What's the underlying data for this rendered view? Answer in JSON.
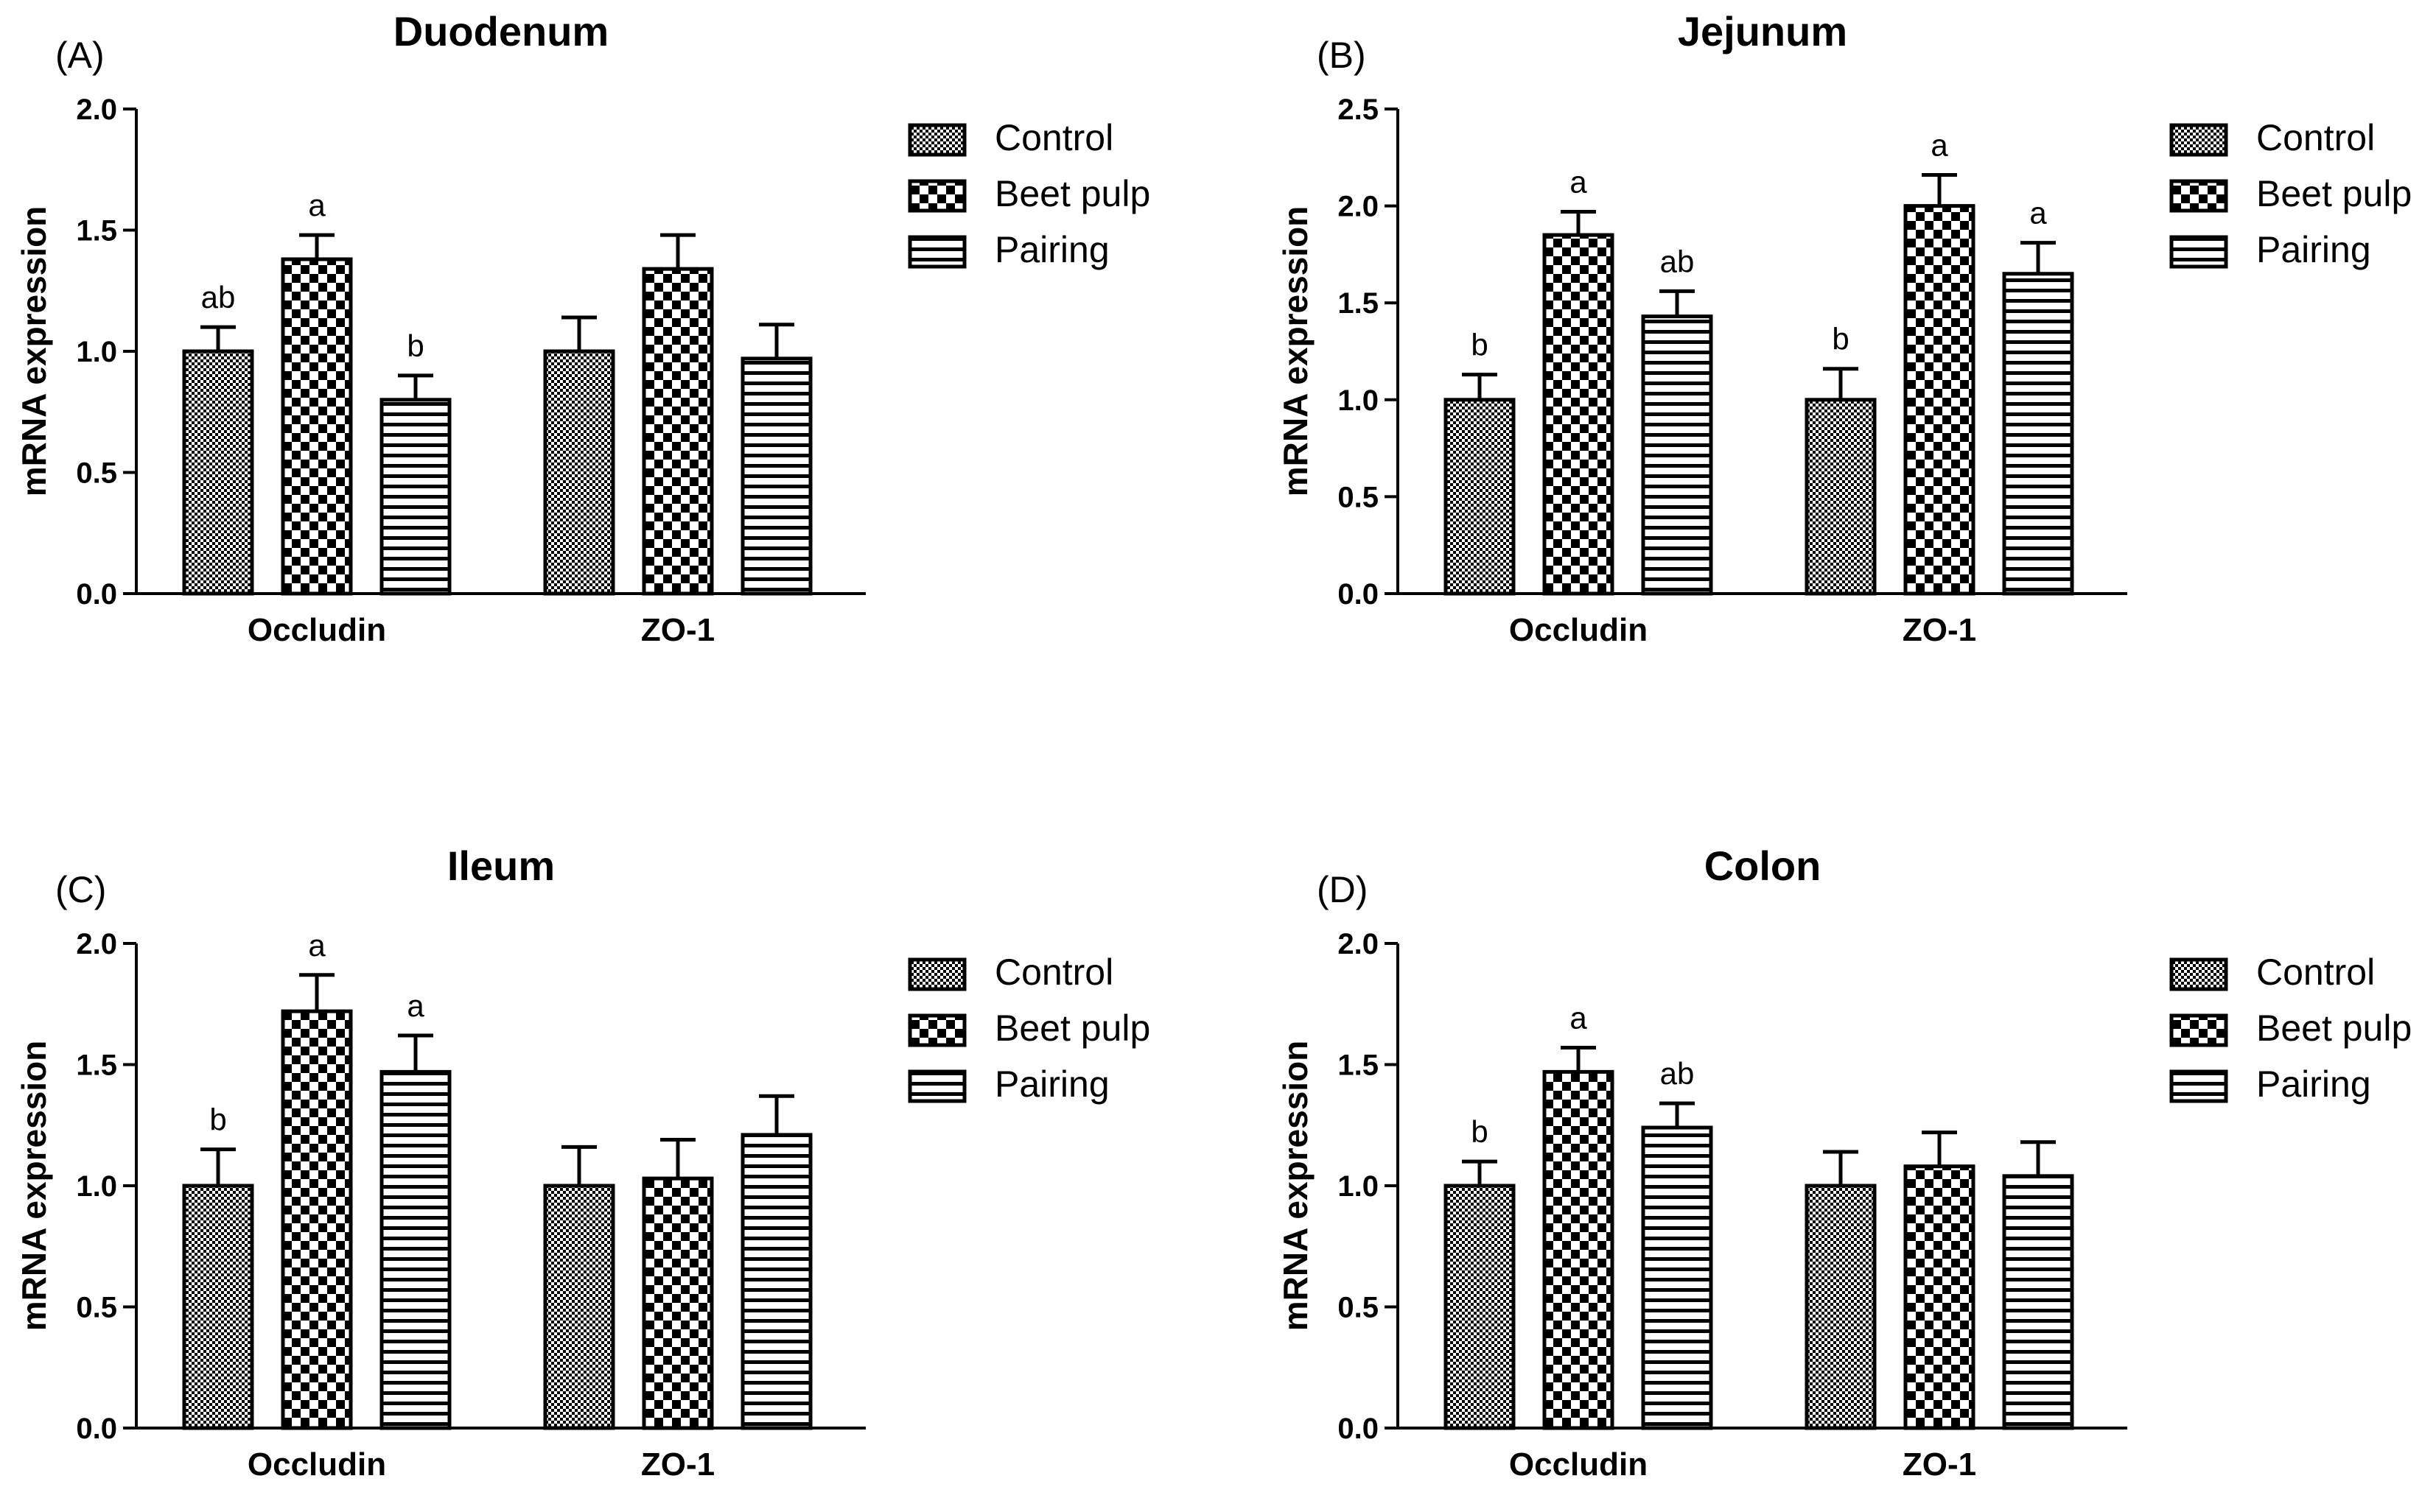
{
  "colors": {
    "ink": "#000000",
    "background": "#ffffff"
  },
  "legend": {
    "entries": [
      {
        "label": "Control",
        "pattern": "fine-check"
      },
      {
        "label": "Beet pulp",
        "pattern": "coarse-check"
      },
      {
        "label": "Pairing",
        "pattern": "horizontal-stripes"
      }
    ]
  },
  "chart_data": [
    {
      "type": "bar",
      "panel_label": "(A)",
      "title": "Duodenum",
      "ylabel": "mRNA expression",
      "xlabel": "",
      "ylim": [
        0,
        2.0
      ],
      "yticks": [
        "0.0",
        "0.5",
        "1.0",
        "1.5",
        "2.0"
      ],
      "categories": [
        "Occludin",
        "ZO-1"
      ],
      "series": [
        {
          "name": "Control",
          "values": [
            1.0,
            1.0
          ],
          "errors": [
            0.1,
            0.14
          ],
          "labels": [
            "ab",
            ""
          ]
        },
        {
          "name": "Beet pulp",
          "values": [
            1.38,
            1.34
          ],
          "errors": [
            0.1,
            0.14
          ],
          "labels": [
            "a",
            ""
          ]
        },
        {
          "name": "Pairing",
          "values": [
            0.8,
            0.97
          ],
          "errors": [
            0.1,
            0.14
          ],
          "labels": [
            "b",
            ""
          ]
        }
      ]
    },
    {
      "type": "bar",
      "panel_label": "(B)",
      "title": "Jejunum",
      "ylabel": "mRNA expression",
      "xlabel": "",
      "ylim": [
        0,
        2.5
      ],
      "yticks": [
        "0.0",
        "0.5",
        "1.0",
        "1.5",
        "2.0",
        "2.5"
      ],
      "categories": [
        "Occludin",
        "ZO-1"
      ],
      "series": [
        {
          "name": "Control",
          "values": [
            1.0,
            1.0
          ],
          "errors": [
            0.13,
            0.16
          ],
          "labels": [
            "b",
            "b"
          ]
        },
        {
          "name": "Beet pulp",
          "values": [
            1.85,
            2.0
          ],
          "errors": [
            0.12,
            0.16
          ],
          "labels": [
            "a",
            "a"
          ]
        },
        {
          "name": "Pairing",
          "values": [
            1.43,
            1.65
          ],
          "errors": [
            0.13,
            0.16
          ],
          "labels": [
            "ab",
            "a"
          ]
        }
      ]
    },
    {
      "type": "bar",
      "panel_label": "(C)",
      "title": "Ileum",
      "ylabel": "mRNA expression",
      "xlabel": "",
      "ylim": [
        0,
        2.0
      ],
      "yticks": [
        "0.0",
        "0.5",
        "1.0",
        "1.5",
        "2.0"
      ],
      "categories": [
        "Occludin",
        "ZO-1"
      ],
      "series": [
        {
          "name": "Control",
          "values": [
            1.0,
            1.0
          ],
          "errors": [
            0.15,
            0.16
          ],
          "labels": [
            "b",
            ""
          ]
        },
        {
          "name": "Beet pulp",
          "values": [
            1.72,
            1.03
          ],
          "errors": [
            0.15,
            0.16
          ],
          "labels": [
            "a",
            ""
          ]
        },
        {
          "name": "Pairing",
          "values": [
            1.47,
            1.21
          ],
          "errors": [
            0.15,
            0.16
          ],
          "labels": [
            "a",
            ""
          ]
        }
      ]
    },
    {
      "type": "bar",
      "panel_label": "(D)",
      "title": "Colon",
      "ylabel": "mRNA expression",
      "xlabel": "",
      "ylim": [
        0,
        2.0
      ],
      "yticks": [
        "0.0",
        "0.5",
        "1.0",
        "1.5",
        "2.0"
      ],
      "categories": [
        "Occludin",
        "ZO-1"
      ],
      "series": [
        {
          "name": "Control",
          "values": [
            1.0,
            1.0
          ],
          "errors": [
            0.1,
            0.14
          ],
          "labels": [
            "b",
            ""
          ]
        },
        {
          "name": "Beet pulp",
          "values": [
            1.47,
            1.08
          ],
          "errors": [
            0.1,
            0.14
          ],
          "labels": [
            "a",
            ""
          ]
        },
        {
          "name": "Pairing",
          "values": [
            1.24,
            1.04
          ],
          "errors": [
            0.1,
            0.14
          ],
          "labels": [
            "ab",
            ""
          ]
        }
      ]
    }
  ]
}
